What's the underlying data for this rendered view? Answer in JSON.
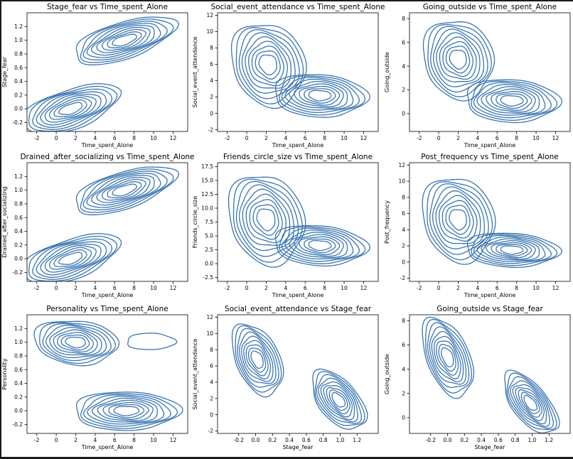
{
  "colors": {
    "contour": "#3a75b0",
    "axis": "#000000",
    "background": "#ffffff"
  },
  "chart_data": [
    {
      "type": "kde-contour",
      "title": "Stage_fear vs Time_spent_Alone",
      "xlabel": "Time_spent_Alone",
      "ylabel": "Stage_fear",
      "xlim": [
        -3,
        13.5
      ],
      "ylim": [
        -0.33,
        1.4
      ],
      "xticks": [
        -2,
        0,
        2,
        4,
        6,
        8,
        10,
        12
      ],
      "yticks": [
        -0.2,
        0.0,
        0.2,
        0.4,
        0.6,
        0.8,
        1.0,
        1.2
      ],
      "ytick_decimals": 1,
      "blobs": [
        {
          "cx": 1.5,
          "cy": 0.0,
          "rx": 5.0,
          "ry": 0.3,
          "tilt": 0.04,
          "levels": 9
        },
        {
          "cx": 7.0,
          "cy": 1.0,
          "rx": 5.2,
          "ry": 0.28,
          "tilt": 0.04,
          "levels": 9
        }
      ]
    },
    {
      "type": "kde-contour",
      "title": "Social_event_attendance vs Time_spent_Alone",
      "xlabel": "Time_spent_Alone",
      "ylabel": "Social_event_attendance",
      "xlim": [
        -3,
        13.5
      ],
      "ylim": [
        -2.2,
        12.3
      ],
      "xticks": [
        -2,
        0,
        2,
        4,
        6,
        8,
        10,
        12
      ],
      "yticks": [
        -2,
        0,
        2,
        4,
        6,
        8,
        10,
        12
      ],
      "ytick_decimals": 0,
      "blobs": [
        {
          "cx": 2.2,
          "cy": 6.0,
          "rx": 3.8,
          "ry": 5.0,
          "tilt": -0.2,
          "levels": 9
        },
        {
          "cx": 7.5,
          "cy": 2.2,
          "rx": 4.8,
          "ry": 2.6,
          "tilt": -0.05,
          "levels": 9
        }
      ]
    },
    {
      "type": "kde-contour",
      "title": "Going_outside vs Time_spent_Alone",
      "xlabel": "Time_spent_Alone",
      "ylabel": "Going_outside",
      "xlim": [
        -3,
        13.5
      ],
      "ylim": [
        -1.5,
        8.5
      ],
      "xticks": [
        -2,
        0,
        2,
        4,
        6,
        8,
        10,
        12
      ],
      "yticks": [
        0,
        2,
        4,
        6,
        8
      ],
      "ytick_decimals": 0,
      "blobs": [
        {
          "cx": 2.0,
          "cy": 4.6,
          "rx": 3.6,
          "ry": 3.3,
          "tilt": -0.1,
          "levels": 9
        },
        {
          "cx": 7.5,
          "cy": 1.1,
          "rx": 4.8,
          "ry": 1.8,
          "tilt": -0.03,
          "levels": 9
        }
      ]
    },
    {
      "type": "kde-contour",
      "title": "Drained_after_socializing vs Time_spent_Alone",
      "xlabel": "Time_spent_Alone",
      "ylabel": "Drained_after_socializing",
      "xlim": [
        -3,
        13.5
      ],
      "ylim": [
        -0.33,
        1.4
      ],
      "xticks": [
        -2,
        0,
        2,
        4,
        6,
        8,
        10,
        12
      ],
      "yticks": [
        -0.2,
        0.0,
        0.2,
        0.4,
        0.6,
        0.8,
        1.0,
        1.2
      ],
      "ytick_decimals": 1,
      "blobs": [
        {
          "cx": 1.5,
          "cy": 0.0,
          "rx": 5.0,
          "ry": 0.3,
          "tilt": 0.04,
          "levels": 9
        },
        {
          "cx": 7.0,
          "cy": 1.0,
          "rx": 5.2,
          "ry": 0.28,
          "tilt": 0.04,
          "levels": 9
        }
      ]
    },
    {
      "type": "kde-contour",
      "title": "Friends_circle_size vs Time_spent_Alone",
      "xlabel": "Time_spent_Alone",
      "ylabel": "Friends_circle_size",
      "xlim": [
        -3,
        13.5
      ],
      "ylim": [
        -3.2,
        18.2
      ],
      "xticks": [
        -2,
        0,
        2,
        4,
        6,
        8,
        10,
        12
      ],
      "yticks": [
        -2.5,
        0.0,
        2.5,
        5.0,
        7.5,
        10.0,
        12.5,
        15.0,
        17.5
      ],
      "ytick_decimals": 1,
      "blobs": [
        {
          "cx": 2.0,
          "cy": 8.0,
          "rx": 3.9,
          "ry": 8.0,
          "tilt": -0.35,
          "levels": 9
        },
        {
          "cx": 7.5,
          "cy": 3.3,
          "rx": 4.8,
          "ry": 3.6,
          "tilt": -0.1,
          "levels": 9
        }
      ]
    },
    {
      "type": "kde-contour",
      "title": "Post_frequency vs Time_spent_Alone",
      "xlabel": "Time_spent_Alone",
      "ylabel": "Post_frequency",
      "xlim": [
        -3,
        13.5
      ],
      "ylim": [
        -2.4,
        12.3
      ],
      "xticks": [
        -2,
        0,
        2,
        4,
        6,
        8,
        10,
        12
      ],
      "yticks": [
        -2,
        0,
        2,
        4,
        6,
        8,
        10,
        12
      ],
      "ytick_decimals": 0,
      "blobs": [
        {
          "cx": 2.0,
          "cy": 5.3,
          "rx": 3.7,
          "ry": 5.2,
          "tilt": -0.2,
          "levels": 9
        },
        {
          "cx": 7.5,
          "cy": 1.5,
          "rx": 4.8,
          "ry": 2.1,
          "tilt": -0.05,
          "levels": 9
        }
      ]
    },
    {
      "type": "kde-contour",
      "title": "Personality vs Time_spent_Alone",
      "xlabel": "Time_spent_Alone",
      "ylabel": "Personality",
      "xlim": [
        -3,
        13.5
      ],
      "ylim": [
        -0.33,
        1.4
      ],
      "xticks": [
        -2,
        0,
        2,
        4,
        6,
        8,
        10,
        12
      ],
      "yticks": [
        -0.2,
        0.0,
        0.2,
        0.4,
        0.6,
        0.8,
        1.0,
        1.2
      ],
      "ytick_decimals": 1,
      "blobs": [
        {
          "cx": 2.0,
          "cy": 1.0,
          "rx": 4.3,
          "ry": 0.32,
          "tilt": -0.01,
          "levels": 9
        },
        {
          "cx": 7.2,
          "cy": 0.0,
          "rx": 5.4,
          "ry": 0.28,
          "tilt": 0.0,
          "levels": 9
        },
        {
          "cx": 9.7,
          "cy": 1.01,
          "rx": 2.5,
          "ry": 0.12,
          "tilt": 0.0,
          "levels": 1
        }
      ]
    },
    {
      "type": "kde-contour",
      "title": "Social_event_attendance vs Stage_fear",
      "xlabel": "Stage_fear",
      "ylabel": "Social_event_attendance",
      "xlim": [
        -0.45,
        1.45
      ],
      "ylim": [
        -2.3,
        12.3
      ],
      "xticks": [
        -0.2,
        0.0,
        0.2,
        0.4,
        0.6,
        0.8,
        1.0,
        1.2
      ],
      "yticks": [
        -2,
        0,
        2,
        4,
        6,
        8,
        10,
        12
      ],
      "ytick_decimals": 0,
      "xtick_decimals": 1,
      "blobs": [
        {
          "cx": 0.02,
          "cy": 6.8,
          "rx": 0.3,
          "ry": 4.0,
          "tilt": -6.0,
          "levels": 9
        },
        {
          "cx": 0.98,
          "cy": 1.8,
          "rx": 0.32,
          "ry": 3.1,
          "tilt": -6.0,
          "levels": 9
        }
      ]
    },
    {
      "type": "kde-contour",
      "title": "Going_outside vs Stage_fear",
      "xlabel": "Stage_fear",
      "ylabel": "Going_outside",
      "xlim": [
        -0.45,
        1.45
      ],
      "ylim": [
        -1.3,
        8.5
      ],
      "xticks": [
        -0.2,
        0.0,
        0.2,
        0.4,
        0.6,
        0.8,
        1.0,
        1.2
      ],
      "yticks": [
        0,
        2,
        4,
        6,
        8
      ],
      "ytick_decimals": 0,
      "xtick_decimals": 1,
      "blobs": [
        {
          "cx": 0.0,
          "cy": 5.0,
          "rx": 0.3,
          "ry": 2.9,
          "tilt": -5.0,
          "levels": 9
        },
        {
          "cx": 0.98,
          "cy": 1.2,
          "rx": 0.32,
          "ry": 2.0,
          "tilt": -5.0,
          "levels": 9
        }
      ]
    }
  ]
}
